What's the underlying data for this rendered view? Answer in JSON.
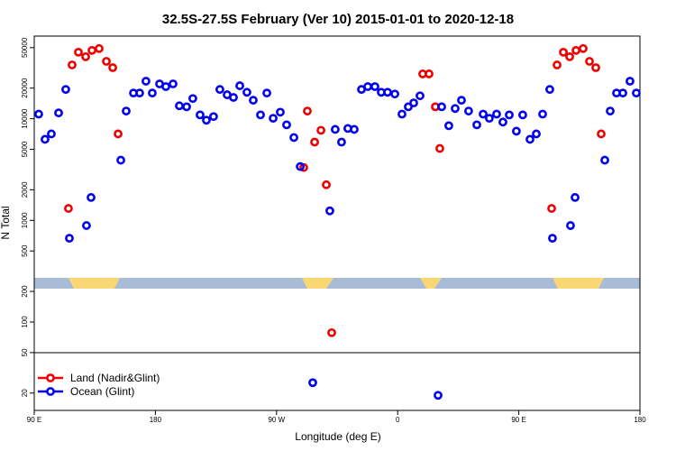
{
  "chart_data": {
    "type": "scatter",
    "title": "32.5S-27.5S February (Ver 10)   2015-01-01 to 2020-12-18",
    "xlabel": "Longitude (deg E)",
    "ylabel": "N Total",
    "xlim": [
      90,
      540
    ],
    "ylim": [
      13.5,
      65000
    ],
    "log_y": true,
    "legend": "lower left",
    "xticks": [
      {
        "value": 90,
        "label": "90 E"
      },
      {
        "value": 180,
        "label": "180"
      },
      {
        "value": 270,
        "label": "90 W"
      },
      {
        "value": 360,
        "label": "0"
      },
      {
        "value": 450,
        "label": "90 E"
      },
      {
        "value": 540,
        "label": "180"
      }
    ],
    "yticks": [
      20,
      50,
      100,
      200,
      500,
      1000,
      2000,
      5000,
      10000,
      20000,
      50000
    ],
    "series": [
      {
        "name": "Land (Nadir&Glint)",
        "color": "#ee0000",
        "x": [
          115.4,
          118.1,
          122.8,
          128.2,
          132.9,
          138.2,
          143.6,
          148.3,
          152.3,
          290.2,
          292.9,
          298.3,
          303.0,
          307.0,
          311.0,
          378.6,
          383.3,
          388.0,
          391.3,
          474.4,
          478.4,
          483.1,
          487.8,
          492.5,
          497.8,
          502.5,
          507.2,
          511.2
        ],
        "values": [
          1310,
          33800,
          45100,
          40700,
          47000,
          49000,
          36700,
          31800,
          7090,
          3310,
          11900,
          5890,
          7690,
          2240,
          78.5,
          27600,
          27600,
          13100,
          5100,
          1310,
          33800,
          45100,
          40700,
          47000,
          49000,
          36700,
          31800,
          7090
        ]
      },
      {
        "name": "Ocean (Glint)",
        "color": "#0000ee",
        "x": [
          93.3,
          98.0,
          102.7,
          108.1,
          113.4,
          116.1,
          128.8,
          132.2,
          154.3,
          158.3,
          163.7,
          168.3,
          173.0,
          177.7,
          183.1,
          187.8,
          193.1,
          197.8,
          203.2,
          207.8,
          213.2,
          217.9,
          223.2,
          227.9,
          233.3,
          238.0,
          242.7,
          248.0,
          252.7,
          258.1,
          262.8,
          267.5,
          272.8,
          277.5,
          282.9,
          287.6,
          296.9,
          309.6,
          313.6,
          318.3,
          323.0,
          327.7,
          333.1,
          337.8,
          343.1,
          347.8,
          352.5,
          357.9,
          363.2,
          367.9,
          371.9,
          376.6,
          390.0,
          392.7,
          398.0,
          402.7,
          407.4,
          412.7,
          418.8,
          423.5,
          428.1,
          433.5,
          438.2,
          442.9,
          448.2,
          452.9,
          458.3,
          463.0,
          467.7,
          473.0,
          475.0,
          488.4,
          491.8,
          513.9,
          517.9,
          522.6,
          527.3,
          532.6,
          537.3
        ],
        "values": [
          11100,
          6270,
          7090,
          11400,
          19400,
          667,
          889,
          1680,
          3910,
          11900,
          17900,
          17900,
          23400,
          17900,
          22000,
          20700,
          22000,
          13400,
          13100,
          15800,
          10900,
          9660,
          10500,
          19400,
          17200,
          16200,
          21100,
          18200,
          15200,
          10900,
          17900,
          10100,
          11600,
          8710,
          6530,
          3380,
          25.3,
          1240,
          7850,
          5890,
          8020,
          7850,
          19400,
          20700,
          20700,
          18200,
          18200,
          17500,
          11100,
          13100,
          14300,
          16800,
          19.0,
          13100,
          8530,
          12600,
          15200,
          11900,
          8710,
          11100,
          10100,
          11100,
          9270,
          10900,
          7540,
          10900,
          6270,
          7090,
          11100,
          19400,
          667,
          889,
          1680,
          3910,
          11900,
          17900,
          17900,
          23400,
          17900
        ]
      }
    ]
  }
}
